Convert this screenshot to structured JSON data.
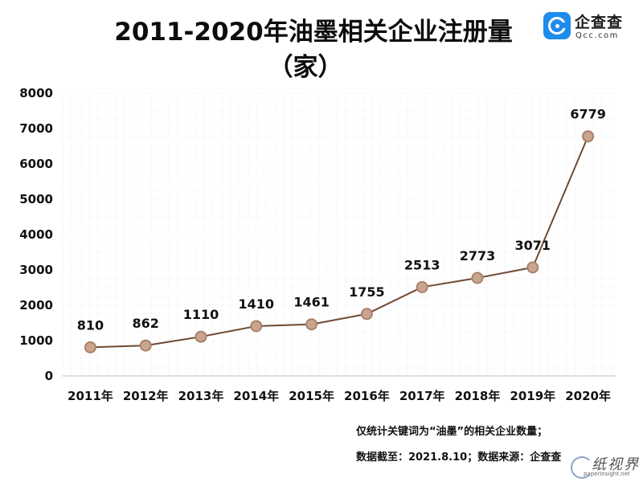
{
  "header": {
    "title_line1": "2011-2020年油墨相关企业注册量",
    "title_line2": "（家）"
  },
  "logo": {
    "name_cn": "企查查",
    "name_en": "Qcc.com",
    "icon": "qcc-logo-icon",
    "color": "#1f8ceb"
  },
  "chart_data": {
    "type": "line",
    "categories": [
      "2011年",
      "2012年",
      "2013年",
      "2014年",
      "2015年",
      "2016年",
      "2017年",
      "2018年",
      "2019年",
      "2020年"
    ],
    "values": [
      810,
      862,
      1110,
      1410,
      1461,
      1755,
      2513,
      2773,
      3071,
      6779
    ],
    "data_labels": [
      "810",
      "862",
      "1110",
      "1410",
      "1461",
      "1755",
      "2513",
      "2773",
      "3071",
      "6779"
    ],
    "y_ticks": [
      0,
      1000,
      2000,
      3000,
      4000,
      5000,
      6000,
      7000,
      8000
    ],
    "y_tick_labels": [
      "0",
      "1000",
      "2000",
      "3000",
      "4000",
      "5000",
      "6000",
      "7000",
      "8000"
    ],
    "ylim": [
      0,
      8000
    ],
    "grid": true,
    "legend": "none",
    "line_color": "#6e4a34",
    "marker_color": "#c9a48e",
    "marker_edge": "#a88269",
    "grid_color": "#e6e6e6"
  },
  "footer": {
    "note": "仅统计关键词为“油墨”的相关企业数量；",
    "source": "数据截至：2021.8.10；数据来源：企查查"
  },
  "watermark": {
    "name": "纸视界",
    "url": "paperinsight.net"
  }
}
